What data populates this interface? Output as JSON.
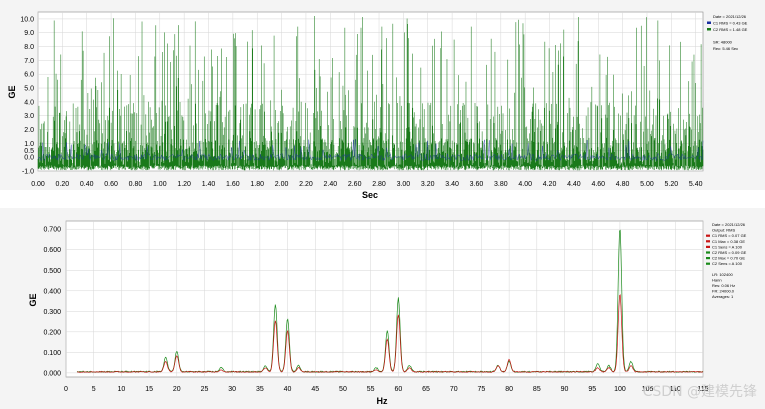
{
  "chart_data": [
    {
      "type": "line",
      "xlabel": "Sec",
      "ylabel": "GE",
      "xlim": [
        0,
        5.46
      ],
      "ylim": [
        -1,
        10.5
      ],
      "xticks": [
        "0.00",
        "0.20",
        "0.40",
        "0.60",
        "0.80",
        "1.00",
        "1.20",
        "1.40",
        "1.60",
        "1.80",
        "2.00",
        "2.20",
        "2.40",
        "2.60",
        "2.80",
        "3.00",
        "3.20",
        "3.40",
        "3.60",
        "3.80",
        "4.00",
        "4.20",
        "4.40",
        "4.60",
        "4.80",
        "5.00",
        "5.20",
        "5.40"
      ],
      "yticks": [
        "-1.0",
        "0.0",
        "0.5",
        "1.0",
        "2.0",
        "3.0",
        "4.0",
        "5.0",
        "6.0",
        "7.0",
        "8.0",
        "9.0",
        "10.0"
      ],
      "grid": true,
      "legend": {
        "position": "top-right",
        "items": [
          {
            "text": "Date = 2021/12/26",
            "color": ""
          },
          {
            "text": "C1 RMS = 0.43 GE",
            "color": "#1a2ea0"
          },
          {
            "text": "C2 RMS = 1.48 GE",
            "color": "#1a7a1a"
          },
          {
            "text": "SR: 48000",
            "color": ""
          },
          {
            "text": "Rec: 5.46 Sec",
            "color": ""
          }
        ]
      },
      "series": [
        {
          "name": "C1",
          "color": "#1a2ea0",
          "description_level": "noise around 0 with rare spikes to ~1.2"
        },
        {
          "name": "C2",
          "color": "#1a7a1a",
          "description_level": "dense impulses, baseline band -0.8..3, spikes up to 10.3"
        }
      ]
    },
    {
      "type": "line",
      "xlabel": "Hz",
      "ylabel": "GE",
      "xlim": [
        0,
        115
      ],
      "ylim": [
        -0.02,
        0.74
      ],
      "xticks": [
        "0",
        "5",
        "10",
        "15",
        "20",
        "25",
        "30",
        "35",
        "40",
        "45",
        "50",
        "55",
        "60",
        "65",
        "70",
        "75",
        "80",
        "85",
        "90",
        "95",
        "100",
        "105",
        "110",
        "115"
      ],
      "yticks": [
        "0.000",
        "0.100",
        "0.200",
        "0.300",
        "0.400",
        "0.500",
        "0.600",
        "0.700"
      ],
      "grid": true,
      "legend": {
        "position": "top-right",
        "items": [
          {
            "text": "Date = 2021/12/26",
            "color": ""
          },
          {
            "text": "Output: RMS",
            "color": ""
          },
          {
            "text": "C1 RMS = 0.07 GE",
            "color": "#c81414"
          },
          {
            "text": "C1 Max = 0.38 GE",
            "color": "#c81414"
          },
          {
            "text": "C1 Sens = A 100",
            "color": "#c81414"
          },
          {
            "text": "C2 RMS = 0.09 GE",
            "color": "#1a8a1a"
          },
          {
            "text": "C2 Max = 0.70 GE",
            "color": "#1a8a1a"
          },
          {
            "text": "C2 Sens = A 100",
            "color": "#1a8a1a"
          },
          {
            "text": "LR: 102400",
            "color": ""
          },
          {
            "text": "Hann",
            "color": ""
          },
          {
            "text": "Res: 0.06 Hz",
            "color": ""
          },
          {
            "text": "FR: 24000.0",
            "color": ""
          },
          {
            "text": "Averages: 1",
            "color": ""
          }
        ]
      },
      "peaks": [
        {
          "hz": 18,
          "c1": 0.05,
          "c2": 0.07
        },
        {
          "hz": 20,
          "c1": 0.08,
          "c2": 0.1
        },
        {
          "hz": 28,
          "c1": 0.01,
          "c2": 0.02
        },
        {
          "hz": 36,
          "c1": 0.02,
          "c2": 0.03
        },
        {
          "hz": 37.8,
          "c1": 0.25,
          "c2": 0.33
        },
        {
          "hz": 40,
          "c1": 0.2,
          "c2": 0.26
        },
        {
          "hz": 42,
          "c1": 0.02,
          "c2": 0.03
        },
        {
          "hz": 56,
          "c1": 0.01,
          "c2": 0.02
        },
        {
          "hz": 58,
          "c1": 0.16,
          "c2": 0.2
        },
        {
          "hz": 60,
          "c1": 0.28,
          "c2": 0.36
        },
        {
          "hz": 62,
          "c1": 0.02,
          "c2": 0.03
        },
        {
          "hz": 78,
          "c1": 0.03,
          "c2": 0.03
        },
        {
          "hz": 80,
          "c1": 0.06,
          "c2": 0.05
        },
        {
          "hz": 96,
          "c1": 0.02,
          "c2": 0.04
        },
        {
          "hz": 98,
          "c1": 0.02,
          "c2": 0.03
        },
        {
          "hz": 100,
          "c1": 0.38,
          "c2": 0.7
        },
        {
          "hz": 102,
          "c1": 0.03,
          "c2": 0.05
        }
      ],
      "series": [
        {
          "name": "C1",
          "color": "#c81414"
        },
        {
          "name": "C2",
          "color": "#1a8a1a"
        }
      ]
    }
  ],
  "watermark": "CSDN @建模先锋"
}
